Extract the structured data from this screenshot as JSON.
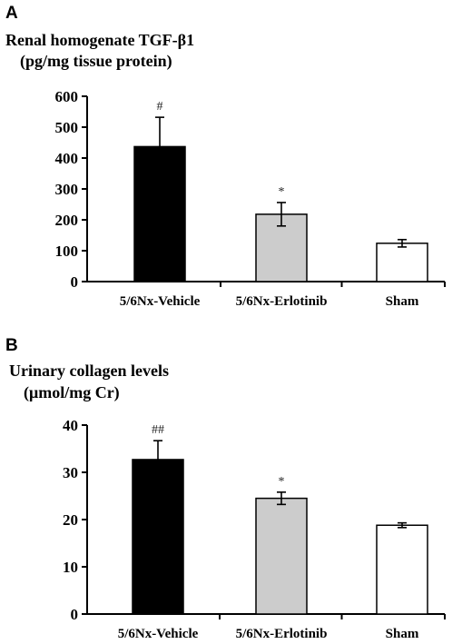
{
  "colors": {
    "bar_fills": [
      "#000000",
      "#cccccc",
      "#ffffff"
    ]
  },
  "chart_data": [
    {
      "type": "bar",
      "panel": "A",
      "title_lines": [
        "Renal homogenate TGF-β1",
        "(pg/mg tissue protein)"
      ],
      "categories": [
        "5/6Nx-Vehicle",
        "5/6Nx-Erlotinib",
        "Sham"
      ],
      "values": [
        437,
        218,
        124
      ],
      "errors": [
        95,
        38,
        12
      ],
      "annotations": [
        "#",
        "*",
        ""
      ],
      "ylim": [
        0,
        600
      ],
      "yticks": [
        0,
        100,
        200,
        300,
        400,
        500,
        600
      ],
      "xlabel": "",
      "ylabel": ""
    },
    {
      "type": "bar",
      "panel": "B",
      "title_lines": [
        "Urinary collagen levels",
        "(μmol/mg Cr)"
      ],
      "categories": [
        "5/6Nx-Vehicle",
        "5/6Nx-Erlotinib",
        "Sham"
      ],
      "values": [
        32.7,
        24.5,
        18.8
      ],
      "errors": [
        4.0,
        1.3,
        0.5
      ],
      "annotations": [
        "##",
        "*",
        ""
      ],
      "ylim": [
        0,
        40
      ],
      "yticks": [
        0,
        10,
        20,
        30,
        40
      ],
      "xlabel": "",
      "ylabel": ""
    }
  ]
}
